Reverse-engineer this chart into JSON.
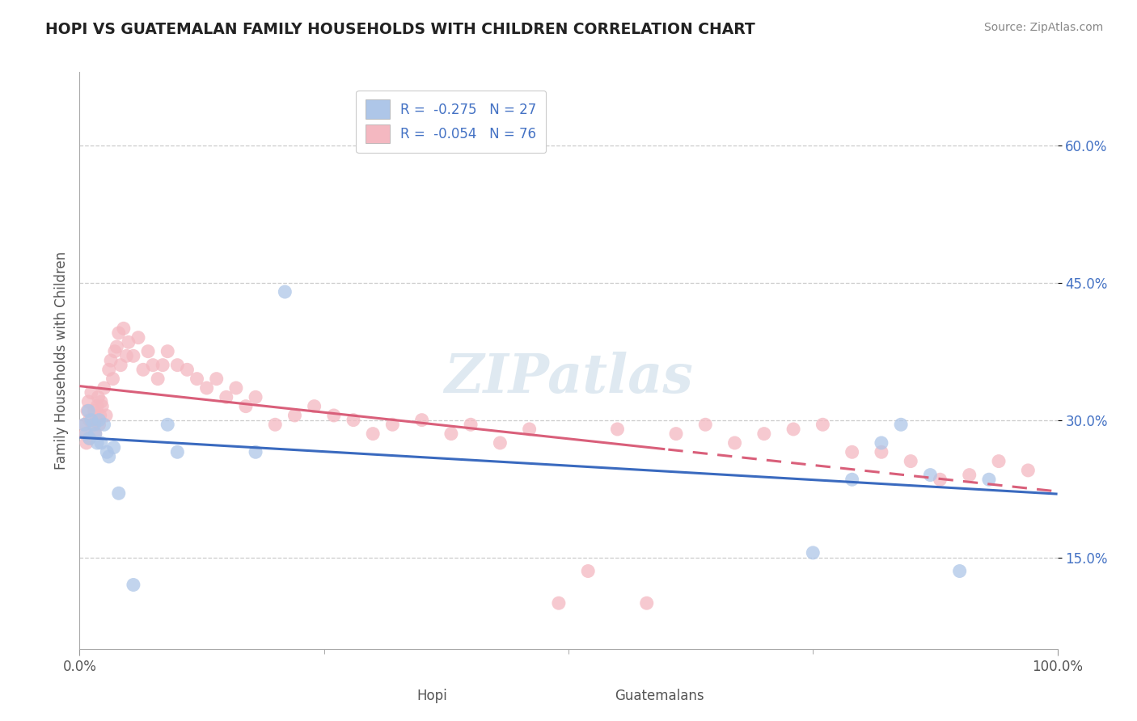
{
  "title": "HOPI VS GUATEMALAN FAMILY HOUSEHOLDS WITH CHILDREN CORRELATION CHART",
  "source": "Source: ZipAtlas.com",
  "ylabel": "Family Households with Children",
  "y_ticks": [
    0.15,
    0.3,
    0.45,
    0.6
  ],
  "y_tick_labels": [
    "15.0%",
    "30.0%",
    "45.0%",
    "60.0%"
  ],
  "legend_entries": [
    {
      "label": "R =  -0.275   N = 27",
      "color": "#aec6e8"
    },
    {
      "label": "R =  -0.054   N = 76",
      "color": "#f4b8c1"
    }
  ],
  "hopi_color": "#aec6e8",
  "guatemalan_color": "#f4b8c1",
  "hopi_line_color": "#3a6abf",
  "guatemalan_line_color": "#d95f7a",
  "watermark": "ZIPatlas",
  "hopi_x": [
    0.005,
    0.007,
    0.009,
    0.01,
    0.012,
    0.015,
    0.016,
    0.018,
    0.02,
    0.022,
    0.025,
    0.028,
    0.03,
    0.035,
    0.04,
    0.055,
    0.09,
    0.1,
    0.18,
    0.21,
    0.75,
    0.79,
    0.82,
    0.84,
    0.87,
    0.9,
    0.93
  ],
  "hopi_y": [
    0.295,
    0.285,
    0.31,
    0.28,
    0.3,
    0.295,
    0.285,
    0.275,
    0.3,
    0.275,
    0.295,
    0.265,
    0.26,
    0.27,
    0.22,
    0.12,
    0.295,
    0.265,
    0.265,
    0.44,
    0.155,
    0.235,
    0.275,
    0.295,
    0.24,
    0.135,
    0.235
  ],
  "guatemalan_x": [
    0.005,
    0.006,
    0.007,
    0.008,
    0.009,
    0.01,
    0.01,
    0.012,
    0.013,
    0.015,
    0.016,
    0.017,
    0.018,
    0.019,
    0.02,
    0.021,
    0.022,
    0.023,
    0.025,
    0.027,
    0.03,
    0.032,
    0.034,
    0.036,
    0.038,
    0.04,
    0.042,
    0.045,
    0.048,
    0.05,
    0.055,
    0.06,
    0.065,
    0.07,
    0.075,
    0.08,
    0.085,
    0.09,
    0.1,
    0.11,
    0.12,
    0.13,
    0.14,
    0.15,
    0.16,
    0.17,
    0.18,
    0.2,
    0.22,
    0.24,
    0.26,
    0.28,
    0.3,
    0.32,
    0.35,
    0.38,
    0.4,
    0.43,
    0.46,
    0.49,
    0.52,
    0.55,
    0.58,
    0.61,
    0.64,
    0.67,
    0.7,
    0.73,
    0.76,
    0.79,
    0.82,
    0.85,
    0.88,
    0.91,
    0.94,
    0.97
  ],
  "guatemalan_y": [
    0.295,
    0.285,
    0.275,
    0.31,
    0.32,
    0.3,
    0.28,
    0.33,
    0.295,
    0.31,
    0.285,
    0.3,
    0.315,
    0.325,
    0.295,
    0.305,
    0.32,
    0.315,
    0.335,
    0.305,
    0.355,
    0.365,
    0.345,
    0.375,
    0.38,
    0.395,
    0.36,
    0.4,
    0.37,
    0.385,
    0.37,
    0.39,
    0.355,
    0.375,
    0.36,
    0.345,
    0.36,
    0.375,
    0.36,
    0.355,
    0.345,
    0.335,
    0.345,
    0.325,
    0.335,
    0.315,
    0.325,
    0.295,
    0.305,
    0.315,
    0.305,
    0.3,
    0.285,
    0.295,
    0.3,
    0.285,
    0.295,
    0.275,
    0.29,
    0.1,
    0.135,
    0.29,
    0.1,
    0.285,
    0.295,
    0.275,
    0.285,
    0.29,
    0.295,
    0.265,
    0.265,
    0.255,
    0.235,
    0.24,
    0.255,
    0.245
  ]
}
